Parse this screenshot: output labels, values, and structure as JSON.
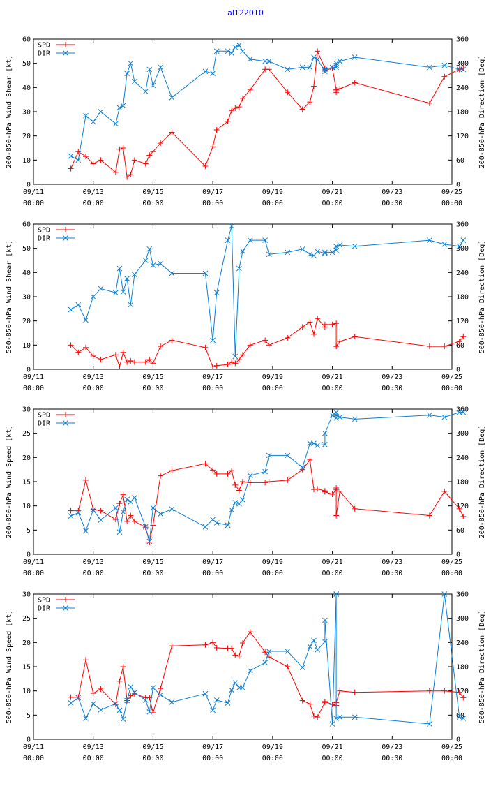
{
  "page": {
    "title": "al122010"
  },
  "colors": {
    "spd": "#ff0000",
    "dir": "#0b7fd4",
    "axis": "#000000"
  },
  "chart_data": [
    {
      "type": "line",
      "ylabel": "200-850-hPa Wind Shear [kt]",
      "y2label": "200-850-hPa Direction [Deg]",
      "ylim": [
        0,
        60
      ],
      "yticks": [
        0,
        10,
        20,
        30,
        40,
        50,
        60
      ],
      "y2lim": [
        0,
        360
      ],
      "y2ticks": [
        0,
        60,
        120,
        180,
        240,
        300,
        360
      ],
      "xlim": [
        0,
        14
      ],
      "xticks": [
        0,
        2,
        4,
        6,
        8,
        10,
        12,
        14
      ],
      "xticklabels": [
        [
          "09/11",
          "00:00"
        ],
        [
          "09/13",
          "00:00"
        ],
        [
          "09/15",
          "00:00"
        ],
        [
          "09/17",
          "00:00"
        ],
        [
          "09/19",
          "00:00"
        ],
        [
          "09/21",
          "00:00"
        ],
        [
          "09/23",
          "00:00"
        ],
        [
          "09/25",
          "00:00"
        ]
      ],
      "legend": {
        "position": "top-left",
        "entries": [
          "SPD",
          "DIR"
        ]
      },
      "series": [
        {
          "name": "SPD",
          "axis": "y",
          "x": [
            1.25,
            1.5,
            1.75,
            2.0,
            2.25,
            2.75,
            2.88,
            3.0,
            3.13,
            3.25,
            3.38,
            3.75,
            3.88,
            4.0,
            4.25,
            4.63,
            5.75,
            6.0,
            6.13,
            6.5,
            6.63,
            6.75,
            6.88,
            7.0,
            7.25,
            7.75,
            7.88,
            8.5,
            9.0,
            9.25,
            9.38,
            9.5,
            9.75,
            9.75,
            10.0,
            10.13,
            10.13,
            10.13,
            10.25,
            10.75,
            13.25,
            13.75,
            14.25,
            14.38
          ],
          "y": [
            6.5,
            13.5,
            11.5,
            8.5,
            10,
            5,
            14.5,
            15,
            3,
            4,
            10,
            8.5,
            12,
            13.5,
            17,
            21.5,
            7.5,
            15.5,
            22.5,
            26,
            30.5,
            31.5,
            32,
            35.5,
            39,
            47.5,
            47.5,
            38,
            31,
            34,
            40.5,
            55,
            48,
            47,
            48,
            39,
            38,
            39,
            39.5,
            42,
            33.5,
            44.5,
            47.5,
            48
          ]
        },
        {
          "name": "DIR",
          "axis": "y2",
          "x": [
            1.25,
            1.5,
            1.75,
            2.0,
            2.25,
            2.75,
            2.88,
            3.0,
            3.13,
            3.25,
            3.38,
            3.75,
            3.88,
            4.0,
            4.25,
            4.63,
            5.75,
            6.0,
            6.13,
            6.5,
            6.63,
            6.75,
            6.88,
            7.0,
            7.25,
            7.75,
            7.88,
            8.5,
            9.0,
            9.25,
            9.38,
            9.5,
            9.75,
            9.75,
            10.0,
            10.13,
            10.13,
            10.13,
            10.25,
            10.75,
            13.25,
            13.75,
            14.25,
            14.38
          ],
          "y": [
            70,
            60,
            170,
            155,
            180,
            150,
            190,
            195,
            275,
            300,
            255,
            230,
            285,
            245,
            290,
            215,
            280,
            275,
            330,
            330,
            325,
            340,
            345,
            330,
            310,
            305,
            305,
            285,
            290,
            290,
            315,
            310,
            280,
            285,
            290,
            290,
            300,
            295,
            305,
            315,
            290,
            295,
            285,
            285
          ]
        }
      ]
    },
    {
      "type": "line",
      "ylabel": "500-850-hPa Wind Shear [kt]",
      "y2label": "500-850-hPa Direction [Deg]",
      "ylim": [
        0,
        60
      ],
      "yticks": [
        0,
        10,
        20,
        30,
        40,
        50,
        60
      ],
      "y2lim": [
        0,
        360
      ],
      "y2ticks": [
        0,
        60,
        120,
        180,
        240,
        300,
        360
      ],
      "xlim": [
        0,
        14
      ],
      "xticks": [
        0,
        2,
        4,
        6,
        8,
        10,
        12,
        14
      ],
      "xticklabels": [
        [
          "09/11",
          "00:00"
        ],
        [
          "09/13",
          "00:00"
        ],
        [
          "09/15",
          "00:00"
        ],
        [
          "09/17",
          "00:00"
        ],
        [
          "09/19",
          "00:00"
        ],
        [
          "09/21",
          "00:00"
        ],
        [
          "09/23",
          "00:00"
        ],
        [
          "09/25",
          "00:00"
        ]
      ],
      "legend": {
        "position": "top-left",
        "entries": [
          "SPD",
          "DIR"
        ]
      },
      "series": [
        {
          "name": "SPD",
          "axis": "y",
          "x": [
            1.25,
            1.5,
            1.75,
            2.0,
            2.25,
            2.75,
            2.88,
            3.0,
            3.13,
            3.25,
            3.38,
            3.75,
            3.88,
            4.0,
            4.25,
            4.63,
            5.75,
            6.0,
            6.13,
            6.5,
            6.63,
            6.75,
            6.88,
            7.0,
            7.25,
            7.75,
            7.88,
            8.5,
            9.0,
            9.25,
            9.38,
            9.5,
            9.75,
            9.75,
            10.0,
            10.13,
            10.13,
            10.13,
            10.25,
            10.75,
            13.25,
            13.75,
            14.25,
            14.38
          ],
          "y": [
            10,
            7,
            9,
            5.5,
            4,
            6,
            1,
            7,
            3,
            3.5,
            3,
            3,
            4,
            2.5,
            9.5,
            12,
            9,
            1,
            1.5,
            2,
            3,
            2.5,
            4,
            6,
            10,
            12,
            10,
            13,
            17.5,
            19.5,
            14.5,
            21,
            17.5,
            18.5,
            18.5,
            19,
            9.5,
            9.5,
            11.5,
            13.5,
            9.5,
            9.5,
            11.5,
            13.5
          ]
        },
        {
          "name": "DIR",
          "axis": "y2",
          "x": [
            1.25,
            1.5,
            1.75,
            2.0,
            2.25,
            2.75,
            2.88,
            3.0,
            3.13,
            3.25,
            3.38,
            3.75,
            3.88,
            4.0,
            4.25,
            4.63,
            5.75,
            6.0,
            6.13,
            6.5,
            6.63,
            6.75,
            6.88,
            7.0,
            7.25,
            7.75,
            7.88,
            8.5,
            9.0,
            9.25,
            9.38,
            9.5,
            9.75,
            9.75,
            10.0,
            10.13,
            10.13,
            10.13,
            10.25,
            10.75,
            13.25,
            13.75,
            14.25,
            14.38
          ],
          "y": [
            148,
            160,
            122,
            180,
            200,
            190,
            250,
            192,
            225,
            160,
            235,
            270,
            298,
            258,
            262,
            238,
            238,
            72,
            190,
            320,
            355,
            32,
            250,
            293,
            320,
            320,
            285,
            290,
            298,
            285,
            282,
            292,
            288,
            290,
            290,
            295,
            305,
            305,
            308,
            305,
            320,
            310,
            305,
            320
          ]
        }
      ]
    },
    {
      "type": "line",
      "ylabel": "200-850-hPa Wind Speed [kt]",
      "y2label": "200-850-hPa Direction [Deg]",
      "ylim": [
        0,
        30
      ],
      "yticks": [
        0,
        5,
        10,
        15,
        20,
        25,
        30
      ],
      "y2lim": [
        0,
        360
      ],
      "y2ticks": [
        0,
        60,
        120,
        180,
        240,
        300,
        360
      ],
      "xlim": [
        0,
        14
      ],
      "xticks": [
        0,
        2,
        4,
        6,
        8,
        10,
        12,
        14
      ],
      "xticklabels": [
        [
          "09/11",
          "00:00"
        ],
        [
          "09/13",
          "00:00"
        ],
        [
          "09/15",
          "00:00"
        ],
        [
          "09/17",
          "00:00"
        ],
        [
          "09/19",
          "00:00"
        ],
        [
          "09/21",
          "00:00"
        ],
        [
          "09/23",
          "00:00"
        ],
        [
          "09/25",
          "00:00"
        ]
      ],
      "legend": {
        "position": "top-left",
        "entries": [
          "SPD",
          "DIR"
        ]
      },
      "series": [
        {
          "name": "SPD",
          "axis": "y",
          "x": [
            1.25,
            1.5,
            1.75,
            2.0,
            2.25,
            2.75,
            2.88,
            3.0,
            3.13,
            3.25,
            3.38,
            3.75,
            3.88,
            4.0,
            4.25,
            4.63,
            5.75,
            6.0,
            6.13,
            6.5,
            6.63,
            6.75,
            6.88,
            7.0,
            7.25,
            7.75,
            7.88,
            8.5,
            9.0,
            9.25,
            9.38,
            9.5,
            9.75,
            9.75,
            10.0,
            10.13,
            10.13,
            10.13,
            10.25,
            10.75,
            13.25,
            13.75,
            14.25,
            14.38
          ],
          "y": [
            9,
            9,
            15.3,
            9.3,
            9,
            7.2,
            10.5,
            12.3,
            6.8,
            8,
            6.8,
            5.6,
            2.5,
            6,
            16.2,
            17.3,
            18.7,
            17.4,
            16.6,
            16.6,
            17.3,
            14.3,
            13.2,
            15,
            14.8,
            14.8,
            15,
            15.3,
            17.5,
            19.5,
            13.4,
            13.5,
            13.1,
            12.9,
            12.4,
            13.3,
            13.7,
            8,
            13,
            9.4,
            8,
            13,
            9.4,
            7.8
          ]
        },
        {
          "name": "DIR",
          "axis": "y2",
          "x": [
            1.25,
            1.5,
            1.75,
            2.0,
            2.25,
            2.75,
            2.88,
            3.0,
            3.13,
            3.25,
            3.38,
            3.75,
            3.88,
            4.0,
            4.25,
            4.63,
            5.75,
            6.0,
            6.13,
            6.5,
            6.63,
            6.75,
            6.88,
            7.0,
            7.25,
            7.75,
            7.88,
            8.5,
            9.0,
            9.25,
            9.38,
            9.5,
            9.75,
            9.75,
            10.0,
            10.13,
            10.13,
            10.13,
            10.25,
            10.75,
            13.25,
            13.75,
            14.25,
            14.38
          ],
          "y": [
            95,
            103,
            58,
            110,
            85,
            115,
            55,
            105,
            136,
            130,
            140,
            68,
            32,
            115,
            100,
            112,
            68,
            86,
            78,
            72,
            110,
            128,
            125,
            135,
            195,
            205,
            245,
            245,
            215,
            275,
            275,
            270,
            272,
            300,
            345,
            338,
            352,
            345,
            340,
            335,
            345,
            340,
            352,
            352
          ]
        }
      ]
    },
    {
      "type": "line",
      "ylabel": "500-850-hPa Wind Speed [kt]",
      "y2label": "500-850-hPa Direction [Deg]",
      "ylim": [
        0,
        30
      ],
      "yticks": [
        0,
        5,
        10,
        15,
        20,
        25,
        30
      ],
      "y2lim": [
        0,
        360
      ],
      "y2ticks": [
        0,
        60,
        120,
        180,
        240,
        300,
        360
      ],
      "xlim": [
        0,
        14
      ],
      "xticks": [
        0,
        2,
        4,
        6,
        8,
        10,
        12,
        14
      ],
      "xticklabels": [
        [
          "09/11",
          "00:00"
        ],
        [
          "09/13",
          "00:00"
        ],
        [
          "09/15",
          "00:00"
        ],
        [
          "09/17",
          "00:00"
        ],
        [
          "09/19",
          "00:00"
        ],
        [
          "09/21",
          "00:00"
        ],
        [
          "09/23",
          "00:00"
        ],
        [
          "09/25",
          "00:00"
        ]
      ],
      "legend": {
        "position": "top-left",
        "entries": [
          "SPD",
          "DIR"
        ]
      },
      "series": [
        {
          "name": "SPD",
          "axis": "y",
          "x": [
            1.25,
            1.5,
            1.75,
            2.0,
            2.25,
            2.75,
            2.88,
            3.0,
            3.13,
            3.25,
            3.38,
            3.75,
            3.88,
            4.0,
            4.25,
            4.63,
            5.75,
            6.0,
            6.13,
            6.5,
            6.63,
            6.75,
            6.88,
            7.0,
            7.25,
            7.75,
            7.88,
            8.5,
            9.0,
            9.25,
            9.38,
            9.5,
            9.75,
            9.75,
            10.0,
            10.13,
            10.13,
            10.13,
            10.25,
            10.75,
            13.25,
            13.75,
            14.25,
            14.38
          ],
          "y": [
            8.7,
            8.7,
            16.4,
            9.5,
            10.4,
            7.2,
            12,
            15,
            8,
            9,
            9.4,
            8.6,
            8.6,
            5.5,
            10.5,
            19.3,
            19.5,
            20,
            18.9,
            18.8,
            18.8,
            17.4,
            17.2,
            19.9,
            22.2,
            18,
            17,
            15,
            8,
            7.3,
            4.8,
            4.6,
            7.6,
            7.8,
            7.2,
            7,
            7.6,
            7.6,
            10,
            9.7,
            10,
            10,
            9.7,
            8.6
          ]
        },
        {
          "name": "DIR",
          "axis": "y2",
          "x": [
            1.25,
            1.5,
            1.75,
            2.0,
            2.25,
            2.75,
            2.88,
            3.0,
            3.13,
            3.25,
            3.38,
            3.75,
            3.88,
            4.0,
            4.25,
            4.63,
            5.75,
            6.0,
            6.13,
            6.5,
            6.63,
            6.75,
            6.88,
            7.0,
            7.25,
            7.75,
            7.88,
            8.5,
            9.0,
            9.25,
            9.38,
            9.5,
            9.75,
            9.75,
            10.0,
            10.13,
            10.13,
            10.13,
            10.25,
            10.75,
            13.25,
            13.75,
            14.25,
            14.38
          ],
          "y": [
            90,
            103,
            52,
            88,
            73,
            88,
            72,
            50,
            96,
            130,
            116,
            97,
            68,
            128,
            110,
            92,
            113,
            72,
            97,
            90,
            122,
            140,
            128,
            128,
            170,
            190,
            218,
            218,
            178,
            230,
            245,
            222,
            242,
            295,
            38,
            360,
            360,
            52,
            55,
            55,
            38,
            360,
            55,
            52
          ]
        }
      ]
    }
  ]
}
